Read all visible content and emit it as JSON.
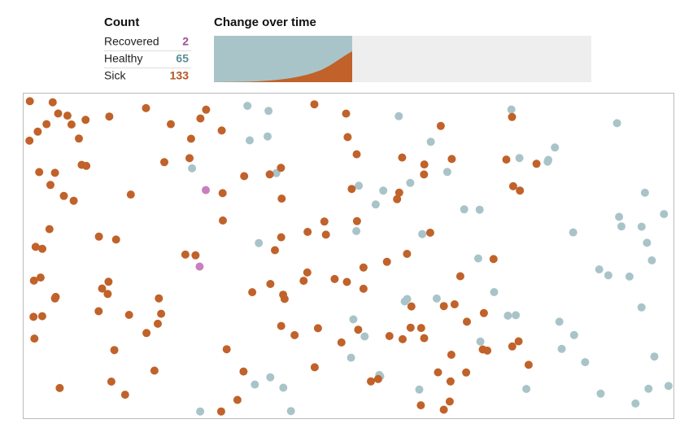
{
  "count": {
    "title": "Count",
    "rows": [
      {
        "label": "Recovered",
        "value": 2,
        "color": "#9b4f93"
      },
      {
        "label": "Healthy",
        "value": 65,
        "color": "#5b8f98"
      },
      {
        "label": "Sick",
        "value": 133,
        "color": "#b5561f"
      }
    ]
  },
  "chart": {
    "title": "Change over time"
  }
}
